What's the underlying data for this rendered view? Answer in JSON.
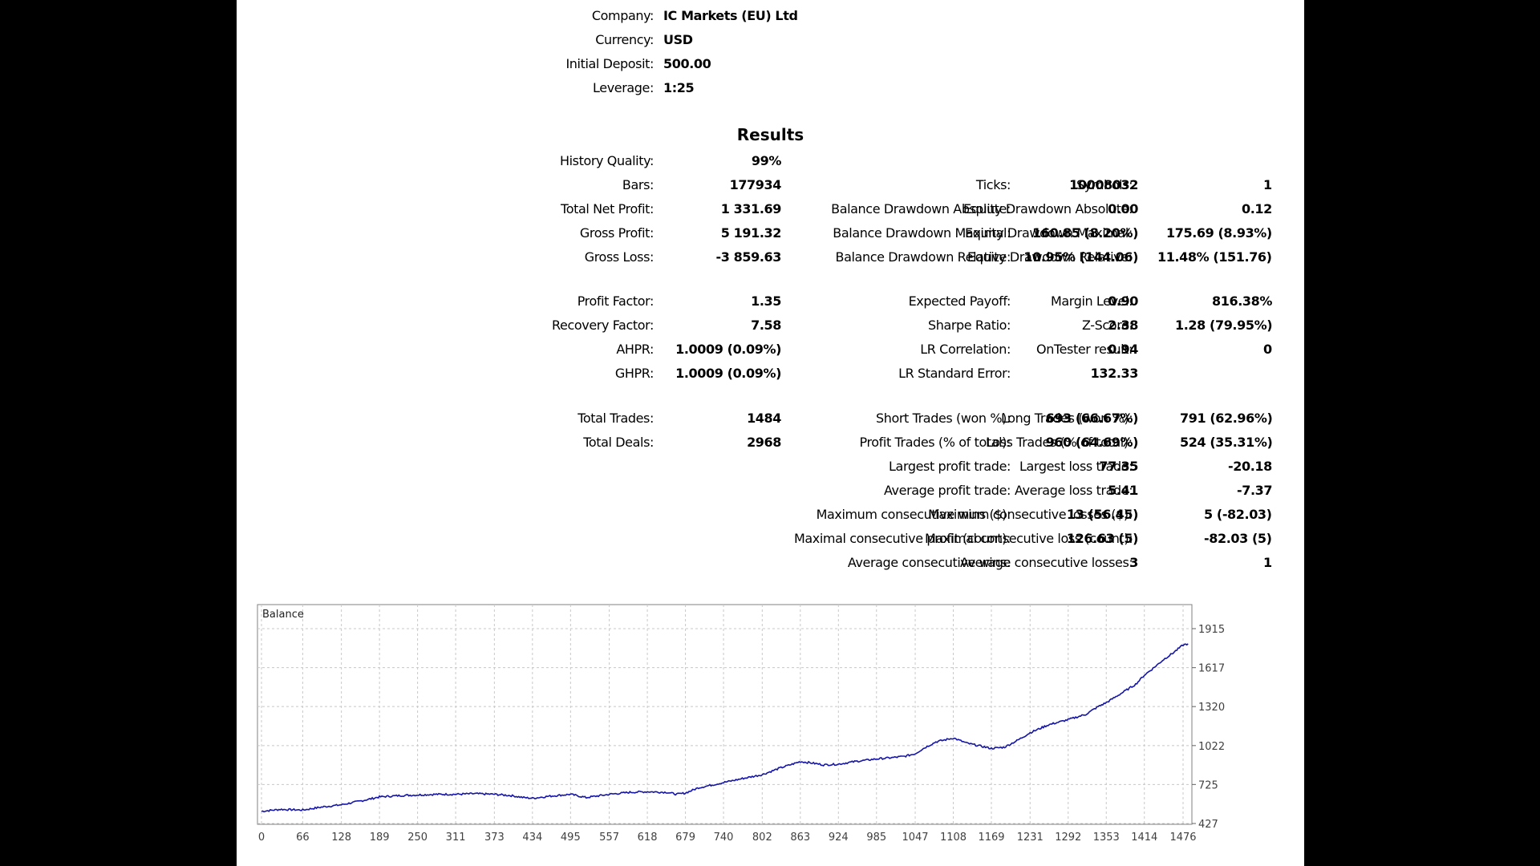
{
  "header": {
    "company": {
      "label": "Company:",
      "value": "IC Markets (EU) Ltd"
    },
    "currency": {
      "label": "Currency:",
      "value": "USD"
    },
    "initial_deposit": {
      "label": "Initial Deposit:",
      "value": "500.00"
    },
    "leverage": {
      "label": "Leverage:",
      "value": "1:25"
    }
  },
  "results_title": "Results",
  "stats": {
    "history_quality": {
      "label": "History Quality:",
      "value": "99%"
    },
    "bars": {
      "label": "Bars:",
      "value": "177934"
    },
    "ticks": {
      "label": "Ticks:",
      "value": "10008032"
    },
    "symbols": {
      "label": "Symbols:",
      "value": "1"
    },
    "total_net_profit": {
      "label": "Total Net Profit:",
      "value": "1 331.69"
    },
    "balance_dd_abs": {
      "label": "Balance Drawdown Absolute:",
      "value": "0.00"
    },
    "equity_dd_abs": {
      "label": "Equity Drawdown Absolute:",
      "value": "0.12"
    },
    "gross_profit": {
      "label": "Gross Profit:",
      "value": "5 191.32"
    },
    "balance_dd_max": {
      "label": "Balance Drawdown Maximal:",
      "value": "160.85 (8.20%)"
    },
    "equity_dd_max": {
      "label": "Equity Drawdown Maximal:",
      "value": "175.69 (8.93%)"
    },
    "gross_loss": {
      "label": "Gross Loss:",
      "value": "-3 859.63"
    },
    "balance_dd_rel": {
      "label": "Balance Drawdown Relative:",
      "value": "10.95% (144.06)"
    },
    "equity_dd_rel": {
      "label": "Equity Drawdown Relative:",
      "value": "11.48% (151.76)"
    },
    "profit_factor": {
      "label": "Profit Factor:",
      "value": "1.35"
    },
    "expected_payoff": {
      "label": "Expected Payoff:",
      "value": "0.90"
    },
    "margin_level": {
      "label": "Margin Level:",
      "value": "816.38%"
    },
    "recovery_factor": {
      "label": "Recovery Factor:",
      "value": "7.58"
    },
    "sharpe_ratio": {
      "label": "Sharpe Ratio:",
      "value": "2.38"
    },
    "z_score": {
      "label": "Z-Score:",
      "value": "1.28 (79.95%)"
    },
    "ahpr": {
      "label": "AHPR:",
      "value": "1.0009 (0.09%)"
    },
    "lr_correlation": {
      "label": "LR Correlation:",
      "value": "0.94"
    },
    "ontester_result": {
      "label": "OnTester result:",
      "value": "0"
    },
    "ghpr": {
      "label": "GHPR:",
      "value": "1.0009 (0.09%)"
    },
    "lr_std_error": {
      "label": "LR Standard Error:",
      "value": "132.33"
    },
    "total_trades": {
      "label": "Total Trades:",
      "value": "1484"
    },
    "short_trades": {
      "label": "Short Trades (won %):",
      "value": "693 (66.67%)"
    },
    "long_trades": {
      "label": "Long Trades (won %):",
      "value": "791 (62.96%)"
    },
    "total_deals": {
      "label": "Total Deals:",
      "value": "2968"
    },
    "profit_trades": {
      "label": "Profit Trades (% of total):",
      "value": "960 (64.69%)"
    },
    "loss_trades": {
      "label": "Loss Trades (% of total):",
      "value": "524 (35.31%)"
    },
    "largest_profit": {
      "label": "Largest profit trade:",
      "value": "77.35"
    },
    "largest_loss": {
      "label": "Largest loss trade:",
      "value": "-20.18"
    },
    "avg_profit": {
      "label": "Average profit trade:",
      "value": "5.41"
    },
    "avg_loss": {
      "label": "Average loss trade:",
      "value": "-7.37"
    },
    "max_consec_wins": {
      "label": "Maximum consecutive wins ($):",
      "value": "13 (56.45)"
    },
    "max_consec_losses": {
      "label": "Maximum consecutive losses ($):",
      "value": "5 (-82.03)"
    },
    "maximal_consec_profit": {
      "label": "Maximal consecutive profit (count):",
      "value": "126.63 (5)"
    },
    "maximal_consec_loss": {
      "label": "Maximal consecutive loss (count):",
      "value": "-82.03 (5)"
    },
    "avg_consec_wins": {
      "label": "Average consecutive wins:",
      "value": "3"
    },
    "avg_consec_losses": {
      "label": "Average consecutive losses:",
      "value": "1"
    }
  },
  "chart_data": {
    "type": "line",
    "title": "Balance",
    "line_color": "#1515a8",
    "grid": true,
    "xlim": [
      0,
      1484
    ],
    "ylim": [
      427,
      1915
    ],
    "x_ticks": [
      0,
      66,
      128,
      189,
      250,
      311,
      373,
      434,
      495,
      557,
      618,
      679,
      740,
      802,
      863,
      924,
      985,
      1047,
      1108,
      1169,
      1231,
      1292,
      1353,
      1414,
      1476
    ],
    "y_ticks": [
      1915,
      1617,
      1320,
      1022,
      725,
      427
    ],
    "series": [
      {
        "x": [
          0,
          30,
          66,
          100,
          128,
          160,
          189,
          220,
          250,
          280,
          311,
          340,
          373,
          400,
          420,
          434,
          460,
          495,
          520,
          557,
          590,
          618,
          650,
          665,
          679,
          700,
          740,
          770,
          802,
          830,
          850,
          863,
          880,
          900,
          924,
          950,
          985,
          1010,
          1030,
          1047,
          1060,
          1080,
          1108,
          1130,
          1150,
          1169,
          1190,
          1210,
          1231,
          1260,
          1292,
          1320,
          1340,
          1353,
          1380,
          1400,
          1414,
          1430,
          1445,
          1460,
          1476,
          1484
        ],
        "values": [
          520,
          535,
          530,
          555,
          570,
          600,
          630,
          640,
          645,
          650,
          650,
          655,
          650,
          640,
          625,
          620,
          635,
          650,
          625,
          650,
          665,
          670,
          665,
          650,
          660,
          700,
          740,
          770,
          800,
          850,
          880,
          900,
          890,
          875,
          880,
          900,
          920,
          930,
          940,
          960,
          1000,
          1050,
          1080,
          1040,
          1020,
          1000,
          1010,
          1060,
          1120,
          1180,
          1220,
          1260,
          1320,
          1350,
          1430,
          1490,
          1560,
          1620,
          1680,
          1730,
          1790,
          1800
        ]
      }
    ]
  }
}
